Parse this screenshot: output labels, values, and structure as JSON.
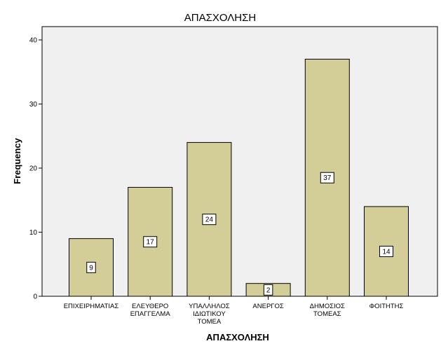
{
  "chart_data": {
    "type": "bar",
    "title": "ΑΠΑΣΧΟΛΗΣΗ",
    "xlabel": "ΑΠΑΣΧΟΛΗΣΗ",
    "ylabel": "Frequency",
    "categories": [
      [
        "ΕΠΙΧΕΙΡΗΜΑΤΙΑΣ"
      ],
      [
        "ΕΛΕΥΘΕΡΟ",
        "ΕΠΑΓΓΕΛΜΑ"
      ],
      [
        "ΥΠΑΛΛΗΛΟΣ",
        "ΙΔΙΩΤΙΚΟΥ",
        "ΤΟΜΕΑ"
      ],
      [
        "ΑΝΕΡΓΟΣ"
      ],
      [
        "ΔΗΜΟΣΙΟΣ",
        "ΤΟΜΕΑΣ"
      ],
      [
        "ΦΟΙΤΗΤΗΣ"
      ]
    ],
    "values": [
      9,
      17,
      24,
      2,
      37,
      14
    ],
    "ylim": [
      0,
      40
    ],
    "yticks": [
      0,
      10,
      20,
      30,
      40
    ],
    "grid": false,
    "colors": {
      "bar_fill": "#d3ce97",
      "bar_stroke": "#000000",
      "plot_background": "#f0f0f0",
      "page_background": "#ffffff"
    }
  }
}
